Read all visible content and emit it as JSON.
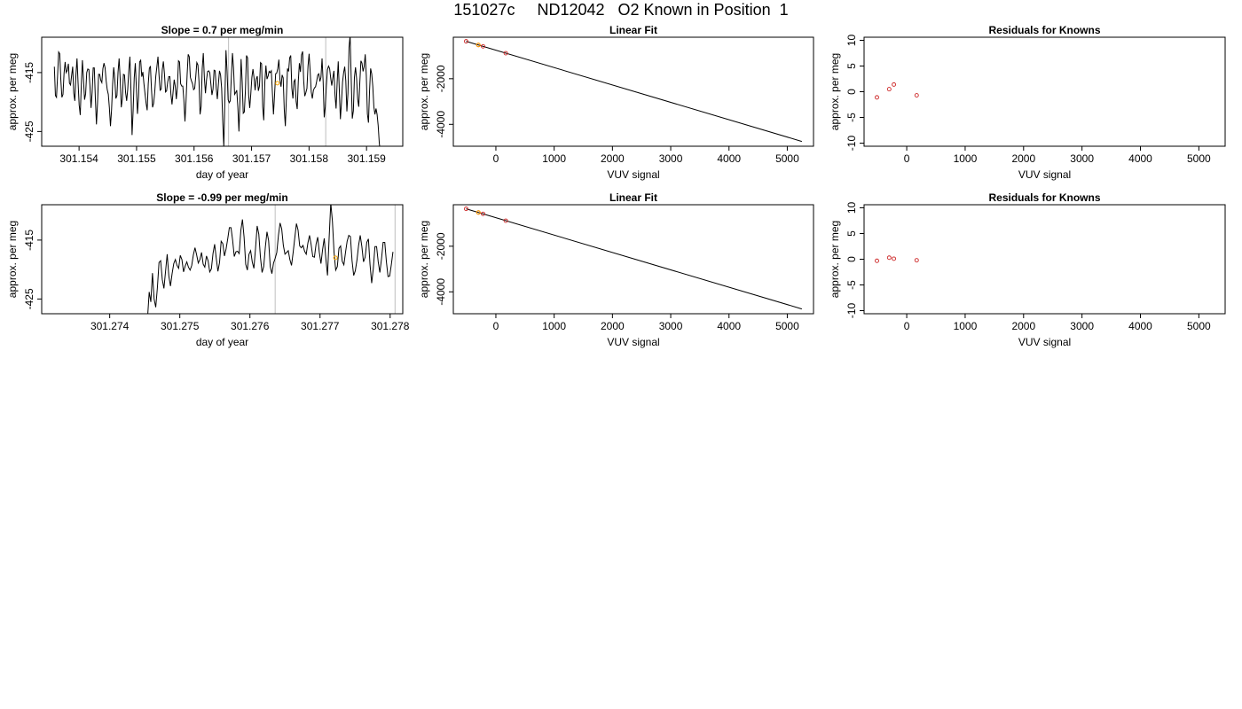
{
  "page": {
    "title": "151027c     ND12042   O2 Known in Position  1"
  },
  "colors": {
    "trace": "#000000",
    "vline": "#bebebe",
    "point": "#cd2626",
    "highlight": "#ffa500",
    "fitline": "#000000"
  },
  "chart_data": [
    {
      "type": "line",
      "title": "Slope =  0.7  per meg/min",
      "xlabel": "day of year",
      "ylabel": "approx. per meg",
      "xlim": [
        301.15335,
        301.15963
      ],
      "ylim": [
        -427.5,
        -409
      ],
      "xticks": [
        301.154,
        301.155,
        301.156,
        301.157,
        301.158,
        301.159
      ],
      "xtick_labels": [
        "301.154",
        "301.155",
        "301.156",
        "301.157",
        "301.158",
        "301.159"
      ],
      "yticks": [
        -425,
        -415
      ],
      "ytick_labels": [
        "-425",
        "-415"
      ],
      "vlines": [
        301.1566,
        301.15829
      ],
      "highlight": {
        "x": 301.15745,
        "y": -416.8
      },
      "series": [
        {
          "x_start": 301.15357,
          "x_end": 301.15924,
          "y": [
            -414.0,
            -418.9,
            -419.2,
            -415.5,
            -411.5,
            -411.8,
            -416.2,
            -419.2,
            -418.7,
            -415.1,
            -413.2,
            -415.0,
            -414.6,
            -413.5,
            -416.8,
            -417.1,
            -415.5,
            -414.0,
            -418.5,
            -419.8,
            -415.4,
            -412.6,
            -416.8,
            -420.5,
            -422.2,
            -417.0,
            -412.9,
            -416.2,
            -419.6,
            -418.6,
            -415.0,
            -414.4,
            -414.5,
            -417.3,
            -421.0,
            -418.4,
            -414.2,
            -414.2,
            -419.4,
            -423.8,
            -420.2,
            -415.3,
            -415.3,
            -416.3,
            -416.7,
            -414.3,
            -413.4,
            -414.2,
            -416.4,
            -417.9,
            -418.7,
            -421.0,
            -424.1,
            -421.3,
            -417.0,
            -414.1,
            -416.1,
            -419.4,
            -418.9,
            -414.9,
            -412.6,
            -416.1,
            -420.9,
            -419.5,
            -415.3,
            -415.4,
            -418.4,
            -419.8,
            -417.8,
            -414.6,
            -412.3,
            -418.2,
            -425.6,
            -421.4,
            -415.9,
            -413.4,
            -417.6,
            -422.0,
            -419.1,
            -413.2,
            -412.9,
            -415.7,
            -414.9,
            -416.9,
            -418.6,
            -420.2,
            -421.4,
            -416.9,
            -414.3,
            -413.9,
            -417.9,
            -420.9,
            -420.2,
            -418.3,
            -415.6,
            -414.0,
            -412.3,
            -415.5,
            -418.0,
            -417.8,
            -414.5,
            -413.1,
            -415.2,
            -418.3,
            -418.1,
            -416.6,
            -415.7,
            -415.7,
            -418.7,
            -420.4,
            -418.3,
            -416.2,
            -417.3,
            -419.5,
            -417.4,
            -413.0,
            -413.2,
            -416.9,
            -417.3,
            -417.3,
            -419.7,
            -423.3,
            -419.8,
            -415.4,
            -411.9,
            -412.3,
            -415.8,
            -416.4,
            -416.9,
            -417.9,
            -417.7,
            -415.7,
            -413.3,
            -413.7,
            -416.5,
            -422.1,
            -420.7,
            -414.3,
            -411.7,
            -415.9,
            -418.5,
            -416.2,
            -414.8,
            -414.7,
            -415.0,
            -416.9,
            -418.8,
            -417.8,
            -414.6,
            -414.7,
            -417.7,
            -419.5,
            -416.9,
            -414.7,
            -415.4,
            -417.7,
            -423.3,
            -427.6,
            -419.3,
            -411.2,
            -414.7,
            -419.6,
            -420.1,
            -419.8,
            -415.6,
            -411.7,
            -414.2,
            -418.7,
            -418.4,
            -418.0,
            -420.9,
            -425.0,
            -419.6,
            -412.7,
            -416.5,
            -421.9,
            -421.7,
            -418.1,
            -412.1,
            -412.5,
            -418.8,
            -421.0,
            -418.6,
            -415.8,
            -414.4,
            -415.9,
            -418.0,
            -416.1,
            -415.6,
            -418.1,
            -417.3,
            -413.3,
            -413.5,
            -420.8,
            -423.1,
            -416.6,
            -413.8,
            -416.1,
            -415.6,
            -414.8,
            -415.0,
            -414.7,
            -418.4,
            -422.1,
            -418.8,
            -415.2,
            -415.1,
            -414.3,
            -412.8,
            -416.2,
            -417.4,
            -415.4,
            -415.9,
            -421.3,
            -424.1,
            -419.1,
            -414.3,
            -414.8,
            -412.5,
            -412.1,
            -417.6,
            -419.4,
            -416.5,
            -416.2,
            -419.9,
            -421.2,
            -416.5,
            -413.4,
            -414.9,
            -412.0,
            -411.4,
            -416.4,
            -419.0,
            -418.4,
            -417.7,
            -413.9,
            -411.8,
            -414.8,
            -418.3,
            -419.4,
            -418.0,
            -417.6,
            -417.4,
            -416.5,
            -415.4,
            -415.2,
            -416.5,
            -415.8,
            -412.6,
            -416.5,
            -422.6,
            -420.8,
            -417.2,
            -414.5,
            -413.9,
            -414.3,
            -415.9,
            -417.2,
            -415.9,
            -414.7,
            -418.8,
            -421.1,
            -416.7,
            -413.1,
            -418.0,
            -422.9,
            -420.1,
            -416.6,
            -415.0,
            -414.0,
            -416.4,
            -421.6,
            -418.5,
            -410.7,
            -408.7,
            -415.9,
            -422.8,
            -421.5,
            -415.8,
            -414.1,
            -416.0,
            -419.5,
            -420.8,
            -416.6,
            -413.0,
            -413.4,
            -414.8,
            -414.0,
            -411.9,
            -415.5,
            -422.0,
            -423.5,
            -418.1,
            -414.3,
            -415.2,
            -417.3,
            -420.8,
            -422.1,
            -421.1,
            -422.1,
            -424.0,
            -426.9,
            -428.6
          ]
        }
      ]
    },
    {
      "type": "line",
      "title": "Linear Fit",
      "xlabel": "VUV signal",
      "ylabel": "approx. per meg",
      "xlim": [
        -730,
        5450
      ],
      "ylim": [
        -4960,
        -180
      ],
      "xticks": [
        0,
        1000,
        2000,
        3000,
        4000,
        5000
      ],
      "xtick_labels": [
        "0",
        "1000",
        "2000",
        "3000",
        "4000",
        "5000"
      ],
      "yticks": [
        -4000,
        -2000
      ],
      "ytick_labels": [
        "-4000",
        "-2000"
      ],
      "fit_line": {
        "x": [
          -510,
          5250
        ],
        "y": [
          -360,
          -4750
        ]
      },
      "points": {
        "x": [
          -510,
          -300,
          -220,
          170
        ],
        "y": [
          -360,
          -520,
          -580,
          -880
        ]
      },
      "highlight": {
        "x": -300,
        "y": -520
      }
    },
    {
      "type": "scatter",
      "title": "Residuals for Knowns",
      "xlabel": "VUV signal",
      "ylabel": "approx. per meg",
      "xlim": [
        -730,
        5450
      ],
      "ylim": [
        -10.6,
        10.6
      ],
      "xticks": [
        0,
        1000,
        2000,
        3000,
        4000,
        5000
      ],
      "xtick_labels": [
        "0",
        "1000",
        "2000",
        "3000",
        "4000",
        "5000"
      ],
      "yticks": [
        -10,
        -5,
        0,
        5,
        10
      ],
      "ytick_labels": [
        "-10",
        "-5",
        "0",
        "5",
        "10"
      ],
      "points": {
        "x": [
          -510,
          -300,
          -220,
          170
        ],
        "y": [
          -1.1,
          0.5,
          1.4,
          -0.7
        ]
      }
    },
    {
      "type": "line",
      "title": "Slope =  -0.99  per meg/min",
      "xlabel": "day of year",
      "ylabel": "approx. per meg",
      "xlim": [
        301.27303,
        301.27818
      ],
      "ylim": [
        -427.5,
        -409
      ],
      "xticks": [
        301.274,
        301.275,
        301.276,
        301.277,
        301.278
      ],
      "xtick_labels": [
        "301.274",
        "301.275",
        "301.276",
        "301.277",
        "301.278"
      ],
      "yticks": [
        -425,
        -415
      ],
      "ytick_labels": [
        "-425",
        "-415"
      ],
      "vlines": [
        301.27636,
        301.27807
      ],
      "highlight": {
        "x": 301.27722,
        "y": -418.0
      },
      "series": [
        {
          "x_start": 301.27454,
          "x_end": 301.27804,
          "y": [
            -428.2,
            -423.8,
            -425.5,
            -420.6,
            -425.0,
            -426.4,
            -423.1,
            -418.8,
            -418.5,
            -421.7,
            -423.2,
            -420.3,
            -417.4,
            -421.1,
            -422.8,
            -420.7,
            -419.0,
            -418.3,
            -419.3,
            -419.8,
            -417.6,
            -418.3,
            -420.4,
            -419.4,
            -418.7,
            -419.6,
            -420.1,
            -419.3,
            -417.5,
            -416.3,
            -417.5,
            -418.9,
            -418.3,
            -417.1,
            -419.1,
            -419.6,
            -417.7,
            -418.5,
            -420.4,
            -419.9,
            -417.3,
            -415.7,
            -418.1,
            -420.3,
            -418.8,
            -415.2,
            -415.6,
            -417.7,
            -416.5,
            -414.8,
            -412.9,
            -412.9,
            -415.0,
            -417.8,
            -417.0,
            -416.9,
            -417.3,
            -413.4,
            -411.5,
            -414.5,
            -419.1,
            -420.1,
            -417.4,
            -416.8,
            -418.7,
            -419.8,
            -416.4,
            -412.6,
            -414.0,
            -417.9,
            -420.5,
            -419.5,
            -416.2,
            -413.6,
            -415.1,
            -419.5,
            -420.7,
            -418.9,
            -418.1,
            -417.1,
            -414.2,
            -412.1,
            -413.1,
            -415.9,
            -417.4,
            -417.1,
            -416.8,
            -418.3,
            -419.3,
            -417.1,
            -414.6,
            -412.2,
            -413.3,
            -416.0,
            -416.3,
            -415.9,
            -416.9,
            -417.4,
            -415.5,
            -414.2,
            -415.8,
            -417.8,
            -417.9,
            -415.7,
            -414.5,
            -417.1,
            -419.0,
            -416.6,
            -414.7,
            -418.2,
            -421.0,
            -414.6,
            -408.7,
            -411.8,
            -417.1,
            -420.1,
            -419.5,
            -416.4,
            -416.0,
            -418.6,
            -419.2,
            -417.1,
            -415.2,
            -414.2,
            -414.4,
            -418.5,
            -421.0,
            -420.2,
            -418.4,
            -415.9,
            -414.2,
            -416.1,
            -418.7,
            -417.9,
            -415.4,
            -414.8,
            -419.2,
            -422.3,
            -419.8,
            -416.1,
            -416.1,
            -418.7,
            -420.5,
            -418.2,
            -415.4,
            -415.4,
            -418.7,
            -421.2,
            -421.1,
            -419.2,
            -417.0
          ]
        }
      ]
    },
    {
      "type": "line",
      "title": "Linear Fit",
      "xlabel": "VUV signal",
      "ylabel": "approx. per meg",
      "xlim": [
        -730,
        5450
      ],
      "ylim": [
        -4960,
        -180
      ],
      "xticks": [
        0,
        1000,
        2000,
        3000,
        4000,
        5000
      ],
      "xtick_labels": [
        "0",
        "1000",
        "2000",
        "3000",
        "4000",
        "5000"
      ],
      "yticks": [
        -4000,
        -2000
      ],
      "ytick_labels": [
        "-4000",
        "-2000"
      ],
      "fit_line": {
        "x": [
          -510,
          5250
        ],
        "y": [
          -360,
          -4750
        ]
      },
      "points": {
        "x": [
          -510,
          -300,
          -220,
          170
        ],
        "y": [
          -360,
          -520,
          -580,
          -880
        ]
      },
      "highlight": {
        "x": -300,
        "y": -520
      }
    },
    {
      "type": "scatter",
      "title": "Residuals for Knowns",
      "xlabel": "VUV signal",
      "ylabel": "approx. per meg",
      "xlim": [
        -730,
        5450
      ],
      "ylim": [
        -10.6,
        10.6
      ],
      "xticks": [
        0,
        1000,
        2000,
        3000,
        4000,
        5000
      ],
      "xtick_labels": [
        "0",
        "1000",
        "2000",
        "3000",
        "4000",
        "5000"
      ],
      "yticks": [
        -10,
        -5,
        0,
        5,
        10
      ],
      "ytick_labels": [
        "-10",
        "-5",
        "0",
        "5",
        "10"
      ],
      "points": {
        "x": [
          -510,
          -300,
          -220,
          170
        ],
        "y": [
          -0.3,
          0.3,
          0.1,
          -0.2
        ]
      }
    }
  ]
}
